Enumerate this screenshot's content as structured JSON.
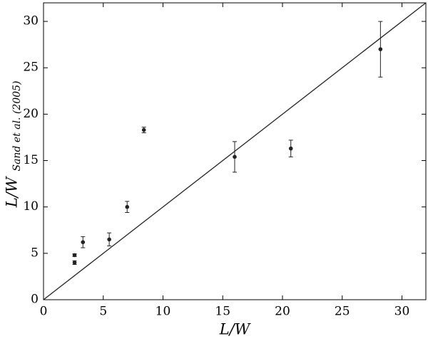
{
  "chart_data": {
    "type": "scatter",
    "xlabel": "L/W",
    "ylabel": "L/W",
    "ylabel_subscript": "Sand et al. (2005)",
    "x": [
      2.6,
      2.6,
      3.3,
      5.5,
      7.0,
      8.4,
      16.0,
      20.7,
      28.2
    ],
    "values": [
      4.0,
      4.8,
      6.2,
      6.5,
      10.0,
      18.3,
      15.4,
      16.3,
      27.0
    ],
    "errors": [
      0.2,
      0.15,
      0.6,
      0.7,
      0.6,
      0.3,
      1.65,
      0.9,
      3.0
    ],
    "color": "#222222",
    "reference_line": {
      "x": [
        0,
        32
      ],
      "y": [
        0,
        32
      ]
    },
    "xlim": [
      0,
      32
    ],
    "ylim": [
      0,
      32
    ],
    "xticks": [
      0,
      5,
      10,
      15,
      20,
      25,
      30
    ],
    "yticks": [
      0,
      5,
      10,
      15,
      20,
      25,
      30
    ]
  }
}
